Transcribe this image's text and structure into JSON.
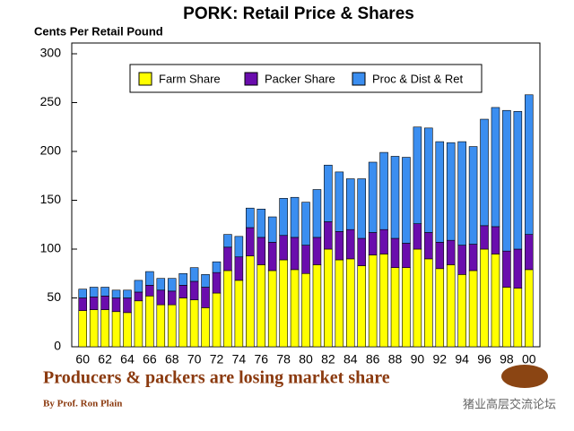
{
  "chart_data": {
    "type": "stacked-bar",
    "title": "PORK: Retail Price & Shares",
    "y_label": "Cents Per Retail Pound",
    "categories": [
      "60",
      null,
      "62",
      null,
      "64",
      null,
      "66",
      null,
      "68",
      null,
      "70",
      null,
      "72",
      null,
      "74",
      null,
      "76",
      null,
      "78",
      null,
      "80",
      null,
      "82",
      null,
      "84",
      null,
      "86",
      null,
      "88",
      null,
      "90",
      null,
      "92",
      null,
      "94",
      null,
      "96",
      null,
      "98",
      null,
      "00"
    ],
    "series": [
      {
        "name": "Farm Share",
        "color": "#ffff00",
        "values": [
          37,
          38,
          38,
          36,
          35,
          47,
          52,
          43,
          43,
          50,
          48,
          40,
          55,
          78,
          68,
          93,
          84,
          78,
          89,
          79,
          75,
          84,
          100,
          89,
          90,
          83,
          94,
          95,
          81,
          81,
          100,
          90,
          80,
          84,
          74,
          78,
          100,
          95,
          61,
          60,
          79
        ]
      },
      {
        "name": "Packer Share",
        "color": "#6a0dad",
        "values": [
          13,
          13,
          14,
          14,
          15,
          9,
          11,
          15,
          14,
          13,
          19,
          21,
          21,
          24,
          24,
          29,
          28,
          29,
          25,
          33,
          29,
          28,
          28,
          29,
          30,
          28,
          23,
          25,
          30,
          25,
          26,
          27,
          27,
          25,
          30,
          27,
          24,
          28,
          37,
          40,
          36
        ]
      },
      {
        "name": "Proc & Dist & Ret",
        "color": "#3b8ef0",
        "values": [
          9,
          10,
          9,
          8,
          8,
          12,
          14,
          12,
          13,
          12,
          14,
          13,
          11,
          13,
          21,
          20,
          29,
          26,
          38,
          41,
          44,
          49,
          58,
          61,
          52,
          61,
          72,
          79,
          84,
          88,
          99,
          107,
          103,
          100,
          106,
          100,
          109,
          122,
          144,
          141,
          143
        ]
      }
    ],
    "ylim": [
      0,
      300
    ],
    "yticks": [
      0,
      50,
      100,
      150,
      200,
      250,
      300
    ],
    "legend": "top",
    "caption": "Producers & packers are losing market share",
    "author": "By Prof. Ron Plain",
    "watermark": "猪业高层交流论坛"
  }
}
